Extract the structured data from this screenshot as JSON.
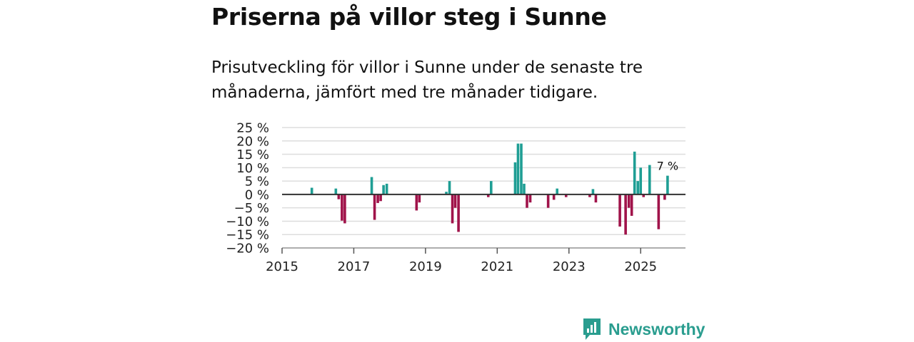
{
  "chart_data": {
    "type": "bar",
    "title": "Priserna på villor steg i Sunne",
    "subtitle": "Prisutveckling för villor i Sunne under de senaste tre månaderna, jämfört med tre månader tidigare.",
    "ylim": [
      -20,
      25
    ],
    "yticks": [
      {
        "value": 25,
        "label": "25 %"
      },
      {
        "value": 20,
        "label": "20 %"
      },
      {
        "value": 15,
        "label": "15 %"
      },
      {
        "value": 10,
        "label": "10 %"
      },
      {
        "value": 5,
        "label": "5 %"
      },
      {
        "value": 0,
        "label": "0 %"
      },
      {
        "value": -5,
        "label": "−5 %"
      },
      {
        "value": -10,
        "label": "−10 %"
      },
      {
        "value": -15,
        "label": "−15 %"
      },
      {
        "value": -20,
        "label": "−20 %"
      }
    ],
    "xlim": [
      2015.0,
      2026.25
    ],
    "xticks": [
      {
        "value": 2015,
        "label": "2015"
      },
      {
        "value": 2017,
        "label": "2017"
      },
      {
        "value": 2019,
        "label": "2019"
      },
      {
        "value": 2021,
        "label": "2021"
      },
      {
        "value": 2023,
        "label": "2023"
      },
      {
        "value": 2025,
        "label": "2025"
      }
    ],
    "colors": {
      "positive": "#1f9e94",
      "negative": "#a0134a",
      "grid": "#dddddd",
      "zero": "#333333"
    },
    "values": [
      {
        "x": 2015.83,
        "y": 2.5
      },
      {
        "x": 2016.5,
        "y": 2.2
      },
      {
        "x": 2016.58,
        "y": -1.8
      },
      {
        "x": 2016.67,
        "y": -9.8
      },
      {
        "x": 2016.75,
        "y": -10.8
      },
      {
        "x": 2017.5,
        "y": 6.5
      },
      {
        "x": 2017.58,
        "y": -9.5
      },
      {
        "x": 2017.67,
        "y": -3.2
      },
      {
        "x": 2017.75,
        "y": -2.5
      },
      {
        "x": 2017.83,
        "y": 3.5
      },
      {
        "x": 2017.92,
        "y": 4.0
      },
      {
        "x": 2018.75,
        "y": -6.0
      },
      {
        "x": 2018.83,
        "y": -3.0
      },
      {
        "x": 2019.58,
        "y": 1.0
      },
      {
        "x": 2019.67,
        "y": 5.0
      },
      {
        "x": 2019.75,
        "y": -10.8
      },
      {
        "x": 2019.83,
        "y": -5.0
      },
      {
        "x": 2019.92,
        "y": -14.0
      },
      {
        "x": 2020.75,
        "y": -1.0
      },
      {
        "x": 2020.83,
        "y": 5.0
      },
      {
        "x": 2021.5,
        "y": 12.0
      },
      {
        "x": 2021.58,
        "y": 19.0
      },
      {
        "x": 2021.67,
        "y": 19.0
      },
      {
        "x": 2021.75,
        "y": 4.0
      },
      {
        "x": 2021.83,
        "y": -5.0
      },
      {
        "x": 2021.92,
        "y": -3.0
      },
      {
        "x": 2022.42,
        "y": -5.0
      },
      {
        "x": 2022.58,
        "y": -2.0
      },
      {
        "x": 2022.67,
        "y": 2.2
      },
      {
        "x": 2022.92,
        "y": -1.0
      },
      {
        "x": 2023.58,
        "y": -1.0
      },
      {
        "x": 2023.67,
        "y": 2.0
      },
      {
        "x": 2023.75,
        "y": -3.0
      },
      {
        "x": 2024.42,
        "y": -12.0
      },
      {
        "x": 2024.58,
        "y": -15.0
      },
      {
        "x": 2024.67,
        "y": -5.0
      },
      {
        "x": 2024.75,
        "y": -8.0
      },
      {
        "x": 2024.83,
        "y": 16.0
      },
      {
        "x": 2024.92,
        "y": 5.0
      },
      {
        "x": 2025.0,
        "y": 10.0
      },
      {
        "x": 2025.08,
        "y": -1.0
      },
      {
        "x": 2025.25,
        "y": 11.0
      },
      {
        "x": 2025.5,
        "y": -13.0
      },
      {
        "x": 2025.67,
        "y": -2.0
      },
      {
        "x": 2025.75,
        "y": 7.0
      }
    ],
    "annotation": {
      "x": 2025.75,
      "y": 7.0,
      "text": "7 %"
    }
  },
  "brand": {
    "name": "Newsworthy"
  }
}
